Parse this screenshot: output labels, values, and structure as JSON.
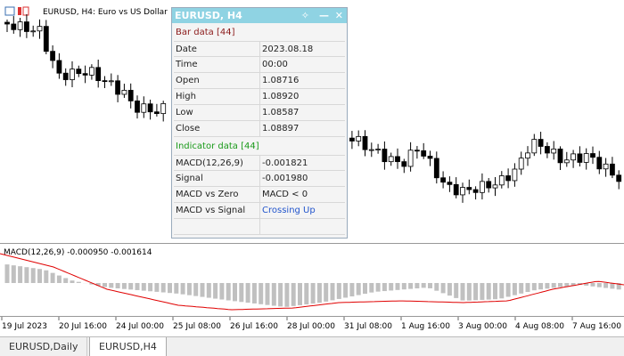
{
  "chart_header": "EURUSD, H4:  Euro vs US Dollar",
  "data_window": {
    "title": "EURUSD, H4",
    "sections": [
      {
        "heading": "Bar data [44]",
        "rows": [
          [
            "Date",
            "2023.08.18"
          ],
          [
            "Time",
            "00:00"
          ],
          [
            "Open",
            "1.08716"
          ],
          [
            "High",
            "1.08920"
          ],
          [
            "Low",
            "1.08587"
          ],
          [
            "Close",
            "1.08897"
          ]
        ]
      },
      {
        "heading": "Indicator data [44]",
        "rows": [
          [
            "MACD(12,26,9)",
            "-0.001821"
          ],
          [
            "Signal",
            "-0.001980"
          ],
          [
            "MACD vs Zero",
            "MACD < 0"
          ],
          [
            "MACD vs Signal",
            "Crossing Up"
          ]
        ]
      }
    ]
  },
  "indicator_label": "MACD(12,26,9) -0.000950 -0.001614",
  "time_axis": [
    "19 Jul 2023",
    "20 Jul 16:00",
    "24 Jul 00:00",
    "25 Jul 08:00",
    "26 Jul 16:00",
    "28 Jul 00:00",
    "31 Jul 08:00",
    "1 Aug 16:00",
    "3 Aug 00:00",
    "4 Aug 08:00",
    "7 Aug 16:00"
  ],
  "tabs": [
    "EURUSD,Daily",
    "EURUSD,H4"
  ]
}
